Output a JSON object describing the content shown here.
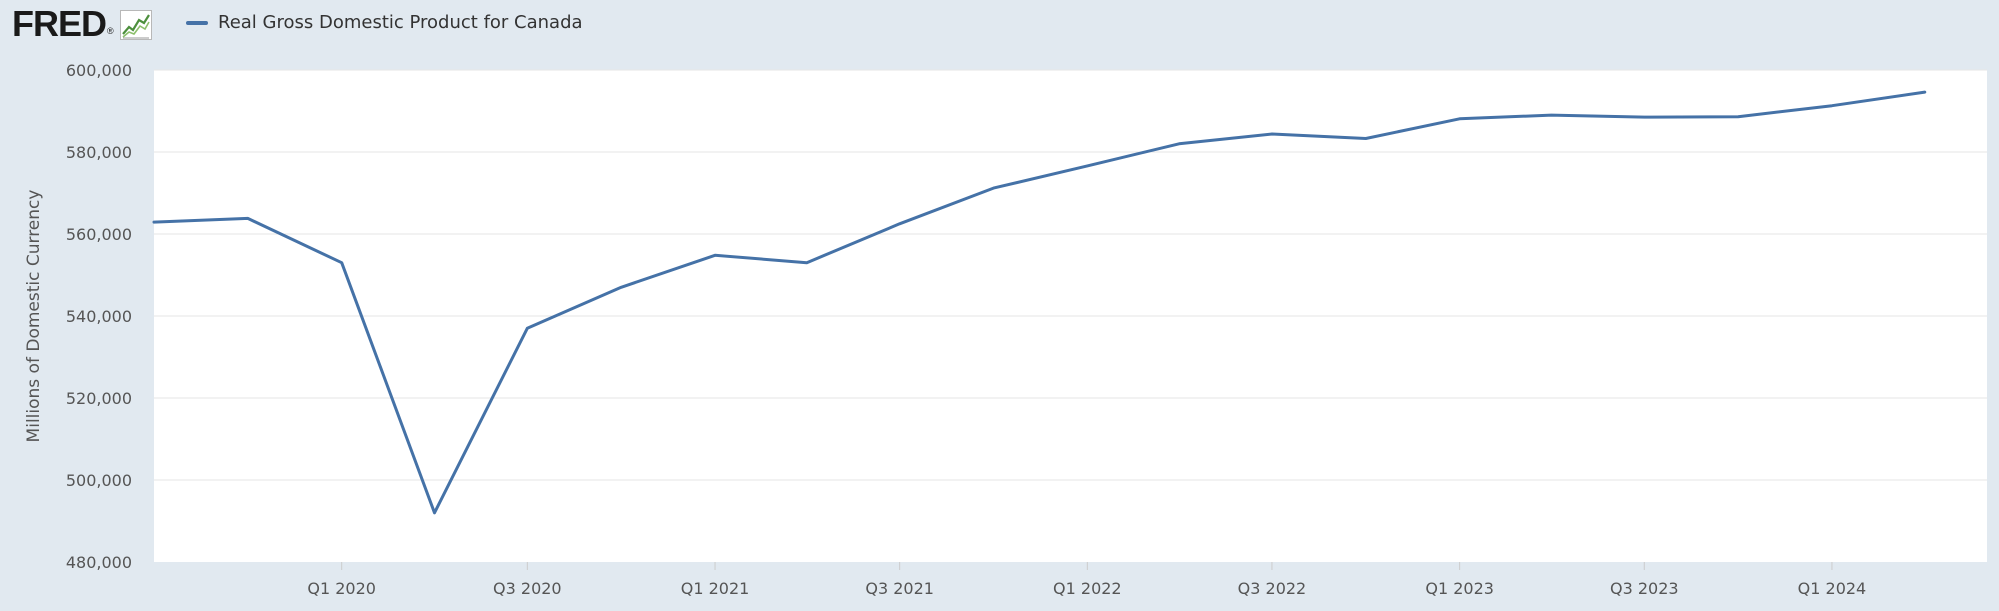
{
  "logo": {
    "text": "FRED",
    "mark": "®",
    "icon": "line-chart-icon"
  },
  "colors": {
    "series": "#4572a7",
    "background": "#e1e9f0",
    "plot": "#ffffff",
    "grid": "#e6e6e6"
  },
  "chart_data": {
    "type": "line",
    "title": "",
    "ylabel": "Millions of Domestic Currency",
    "xlabel": "",
    "ylim": [
      480000,
      600000
    ],
    "yticks": [
      480000,
      500000,
      520000,
      540000,
      560000,
      580000,
      600000
    ],
    "ytick_labels": [
      "480,000",
      "500,000",
      "520,000",
      "540,000",
      "560,000",
      "580,000",
      "600,000"
    ],
    "x_tick_labels": [
      "Q1 2020",
      "Q3 2020",
      "Q1 2021",
      "Q3 2021",
      "Q1 2022",
      "Q3 2022",
      "Q1 2023",
      "Q3 2023",
      "Q1 2024"
    ],
    "x_tick_dates": [
      "2020-01-01",
      "2020-07-01",
      "2021-01-01",
      "2021-07-01",
      "2022-01-01",
      "2022-07-01",
      "2023-01-01",
      "2023-07-01",
      "2024-01-01"
    ],
    "x_range": [
      "2019-07-01",
      "2024-06-01"
    ],
    "grid": true,
    "legend": "top-left",
    "series": [
      {
        "name": "Real Gross Domestic Product for Canada",
        "x": [
          "2019-07-01",
          "2019-10-01",
          "2020-01-01",
          "2020-04-01",
          "2020-07-01",
          "2020-10-01",
          "2021-01-01",
          "2021-04-01",
          "2021-07-01",
          "2021-10-01",
          "2022-01-01",
          "2022-04-01",
          "2022-07-01",
          "2022-10-01",
          "2023-01-01",
          "2023-04-01",
          "2023-07-01",
          "2023-10-01",
          "2024-01-01",
          "2024-04-01"
        ],
        "values": [
          562900,
          563800,
          553000,
          492000,
          537000,
          547000,
          554800,
          553000,
          562500,
          571200,
          576600,
          582000,
          584400,
          583300,
          588100,
          589000,
          588500,
          588600,
          591300,
          594600
        ]
      }
    ]
  }
}
